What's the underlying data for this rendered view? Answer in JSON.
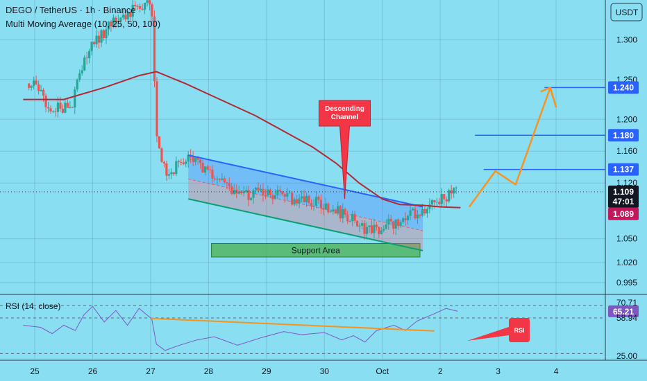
{
  "header": {
    "title": "DEGO / TetherUS · 1h · Binance",
    "indicator": "Multi Moving Average (10, 25, 50, 100)",
    "rsi_label": "RSI (14, close)"
  },
  "currency_button": "USDT",
  "colors": {
    "background": "#89def2",
    "candle_up": "#26a69a",
    "candle_down": "#ef5350",
    "ma": "#b22833",
    "channel_upper": "#2962ff",
    "channel_lower": "#0b9e72",
    "projection": "#f7931e",
    "price_tag_blue": "#2962ff",
    "current_tag": "#131722",
    "ma_tag": "#c2185b",
    "rsi_line": "#7e57c2",
    "callout": "#f23645"
  },
  "annotations": {
    "descending_channel": [
      "Descending",
      "Channel"
    ],
    "support_area": "Support Area",
    "rsi_callout": "RSI"
  },
  "chart_data": {
    "type": "candlestick",
    "title": "DEGO / TetherUS · 1h · Binance",
    "ylim": [
      0.98,
      1.35
    ],
    "y_ticks": [
      "1.300",
      "1.250",
      "1.200",
      "1.160",
      "1.120",
      "1.050",
      "1.020",
      "0.995"
    ],
    "x_ticks": [
      "25",
      "26",
      "27",
      "28",
      "29",
      "30",
      "Oct",
      "2",
      "3",
      "4"
    ],
    "price_levels": [
      {
        "label": "1.240",
        "value": 1.24
      },
      {
        "label": "1.180",
        "value": 1.18
      },
      {
        "label": "1.137",
        "value": 1.137
      }
    ],
    "current_price": {
      "label": "1.109",
      "countdown": "47:01",
      "value": 1.109
    },
    "ma_value": {
      "label": "1.089",
      "value": 1.089
    },
    "price_path": [
      {
        "x": 24.9,
        "y": 1.245
      },
      {
        "x": 25.1,
        "y": 1.235
      },
      {
        "x": 25.25,
        "y": 1.21
      },
      {
        "x": 25.45,
        "y": 1.215
      },
      {
        "x": 25.65,
        "y": 1.22
      },
      {
        "x": 25.8,
        "y": 1.26
      },
      {
        "x": 25.95,
        "y": 1.29
      },
      {
        "x": 26.2,
        "y": 1.31
      },
      {
        "x": 26.5,
        "y": 1.33
      },
      {
        "x": 26.8,
        "y": 1.34
      },
      {
        "x": 27.02,
        "y": 1.345
      },
      {
        "x": 27.1,
        "y": 1.19
      },
      {
        "x": 27.25,
        "y": 1.13
      },
      {
        "x": 27.45,
        "y": 1.14
      },
      {
        "x": 27.7,
        "y": 1.15
      },
      {
        "x": 28.0,
        "y": 1.13
      },
      {
        "x": 28.3,
        "y": 1.12
      },
      {
        "x": 28.55,
        "y": 1.1
      },
      {
        "x": 28.8,
        "y": 1.11
      },
      {
        "x": 29.1,
        "y": 1.105
      },
      {
        "x": 29.5,
        "y": 1.1
      },
      {
        "x": 29.9,
        "y": 1.095
      },
      {
        "x": 30.2,
        "y": 1.085
      },
      {
        "x": 30.45,
        "y": 1.075
      },
      {
        "x": 30.65,
        "y": 1.065
      },
      {
        "x": 30.85,
        "y": 1.06
      },
      {
        "x": 31.1,
        "y": 1.07
      },
      {
        "x": 31.3,
        "y": 1.07
      },
      {
        "x": 31.5,
        "y": 1.08
      },
      {
        "x": 31.75,
        "y": 1.09
      },
      {
        "x": 32.0,
        "y": 1.1
      },
      {
        "x": 32.3,
        "y": 1.109
      }
    ],
    "ma_path": [
      {
        "x": 24.8,
        "y": 1.225
      },
      {
        "x": 25.5,
        "y": 1.225
      },
      {
        "x": 26.2,
        "y": 1.24
      },
      {
        "x": 26.8,
        "y": 1.255
      },
      {
        "x": 27.1,
        "y": 1.26
      },
      {
        "x": 27.6,
        "y": 1.245
      },
      {
        "x": 28.2,
        "y": 1.225
      },
      {
        "x": 28.8,
        "y": 1.205
      },
      {
        "x": 29.3,
        "y": 1.185
      },
      {
        "x": 29.8,
        "y": 1.165
      },
      {
        "x": 30.2,
        "y": 1.145
      },
      {
        "x": 30.6,
        "y": 1.12
      },
      {
        "x": 31.0,
        "y": 1.1
      },
      {
        "x": 31.3,
        "y": 1.093
      },
      {
        "x": 31.7,
        "y": 1.092
      },
      {
        "x": 32.0,
        "y": 1.09
      },
      {
        "x": 32.35,
        "y": 1.089
      }
    ],
    "channel": {
      "upper": [
        {
          "x": 27.65,
          "y": 1.155
        },
        {
          "x": 31.7,
          "y": 1.09
        }
      ],
      "lower": [
        {
          "x": 27.65,
          "y": 1.1
        },
        {
          "x": 31.7,
          "y": 1.035
        }
      ],
      "mid": [
        {
          "x": 27.65,
          "y": 1.125
        },
        {
          "x": 31.7,
          "y": 1.06
        }
      ]
    },
    "support_zone": {
      "x0": 28.05,
      "x1": 31.65,
      "y0": 1.027,
      "y1": 1.044
    },
    "projection": [
      {
        "x": 32.5,
        "y": 1.09
      },
      {
        "x": 32.95,
        "y": 1.135
      },
      {
        "x": 33.3,
        "y": 1.118
      },
      {
        "x": 33.9,
        "y": 1.24
      },
      {
        "x": 34.0,
        "y": 1.215
      }
    ],
    "rsi": {
      "ylim": [
        20,
        80
      ],
      "levels": [
        "70.71",
        "65.21",
        "58.94",
        "25.00"
      ],
      "current": 65.21,
      "trendline": [
        {
          "x": 27.0,
          "y": 58.5
        },
        {
          "x": 31.9,
          "y": 46.5
        }
      ],
      "path": [
        {
          "x": 24.8,
          "y": 52
        },
        {
          "x": 25.1,
          "y": 50
        },
        {
          "x": 25.3,
          "y": 44
        },
        {
          "x": 25.5,
          "y": 52
        },
        {
          "x": 25.7,
          "y": 47
        },
        {
          "x": 25.85,
          "y": 62
        },
        {
          "x": 26.0,
          "y": 70
        },
        {
          "x": 26.2,
          "y": 55
        },
        {
          "x": 26.4,
          "y": 66
        },
        {
          "x": 26.6,
          "y": 52
        },
        {
          "x": 26.8,
          "y": 68
        },
        {
          "x": 27.02,
          "y": 58
        },
        {
          "x": 27.1,
          "y": 34
        },
        {
          "x": 27.25,
          "y": 28
        },
        {
          "x": 27.5,
          "y": 33
        },
        {
          "x": 27.8,
          "y": 38
        },
        {
          "x": 28.1,
          "y": 41
        },
        {
          "x": 28.5,
          "y": 33
        },
        {
          "x": 28.9,
          "y": 40
        },
        {
          "x": 29.3,
          "y": 46
        },
        {
          "x": 29.6,
          "y": 43
        },
        {
          "x": 30.0,
          "y": 45
        },
        {
          "x": 30.3,
          "y": 38
        },
        {
          "x": 30.5,
          "y": 42
        },
        {
          "x": 30.7,
          "y": 36
        },
        {
          "x": 30.9,
          "y": 47
        },
        {
          "x": 31.2,
          "y": 52
        },
        {
          "x": 31.4,
          "y": 47
        },
        {
          "x": 31.6,
          "y": 56
        },
        {
          "x": 31.9,
          "y": 63
        },
        {
          "x": 32.1,
          "y": 68
        },
        {
          "x": 32.3,
          "y": 65.21
        }
      ]
    }
  }
}
